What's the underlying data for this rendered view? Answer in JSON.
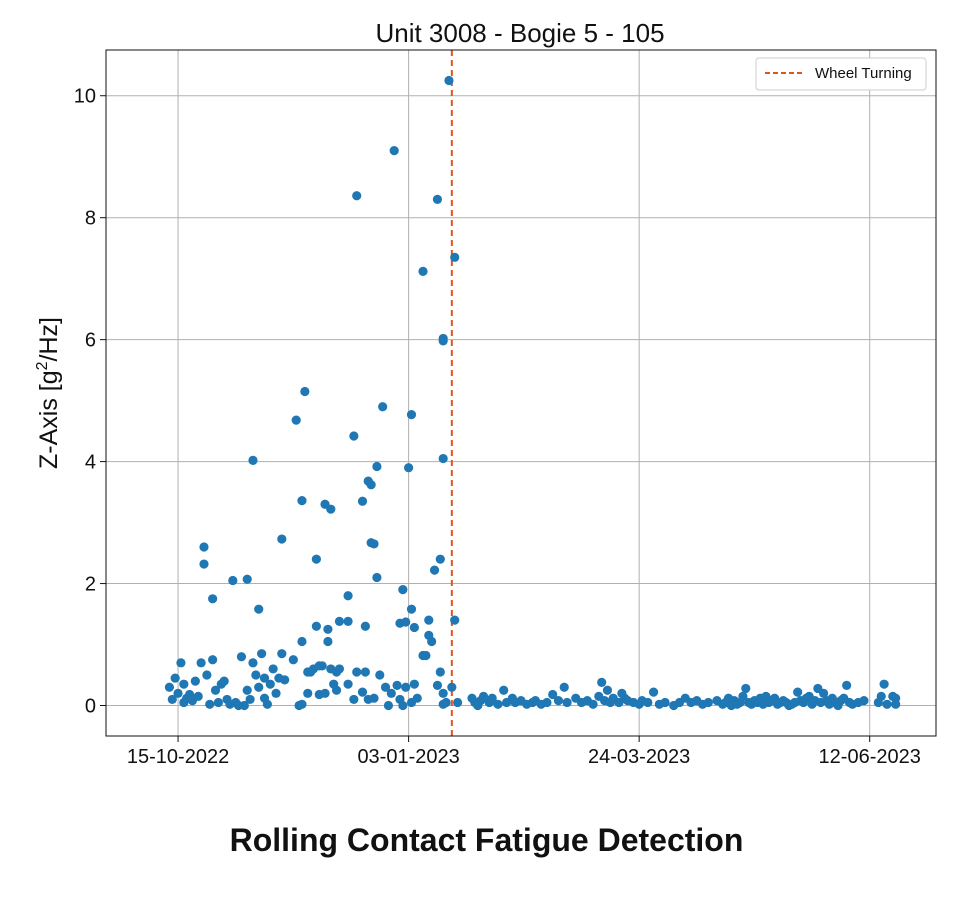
{
  "caption": "Rolling Contact Fatigue Detection",
  "chart_data": {
    "type": "scatter",
    "title": "Unit 3008 - Bogie 5 - 105",
    "xlabel": "",
    "ylabel_main": "Z-Axis [g",
    "ylabel_sup": "2",
    "ylabel_tail": "/Hz]",
    "x_ticks": [
      "2022-10-15",
      "2023-01-03",
      "2023-03-24",
      "2023-06-12"
    ],
    "x_tick_labels": [
      "15-10-2022",
      "03-01-2023",
      "24-03-2023",
      "12-06-2023"
    ],
    "xlim": [
      "2022-09-20",
      "2023-07-05"
    ],
    "y_ticks": [
      0,
      2,
      4,
      6,
      8,
      10
    ],
    "ylim": [
      -0.5,
      10.75
    ],
    "grid": true,
    "legend": {
      "placement": "top-right",
      "entries": [
        {
          "label": "Wheel Turning",
          "style": "dashed",
          "color": "#e2531e"
        }
      ]
    },
    "vline": {
      "x": "2023-01-18",
      "label": "Wheel Turning",
      "color": "#e2531e"
    },
    "point_color": "#1f77b4",
    "points": [
      [
        "2022-10-12",
        0.3
      ],
      [
        "2022-10-13",
        0.1
      ],
      [
        "2022-10-14",
        0.45
      ],
      [
        "2022-10-15",
        0.2
      ],
      [
        "2022-10-16",
        0.7
      ],
      [
        "2022-10-17",
        0.05
      ],
      [
        "2022-10-17",
        0.35
      ],
      [
        "2022-10-18",
        0.12
      ],
      [
        "2022-10-19",
        0.18
      ],
      [
        "2022-10-20",
        0.08
      ],
      [
        "2022-10-21",
        0.4
      ],
      [
        "2022-10-22",
        0.15
      ],
      [
        "2022-10-23",
        0.7
      ],
      [
        "2022-10-24",
        2.6
      ],
      [
        "2022-10-24",
        2.32
      ],
      [
        "2022-10-25",
        0.5
      ],
      [
        "2022-10-26",
        0.02
      ],
      [
        "2022-10-27",
        0.75
      ],
      [
        "2022-10-27",
        1.75
      ],
      [
        "2022-10-28",
        0.25
      ],
      [
        "2022-10-29",
        0.05
      ],
      [
        "2022-10-30",
        0.35
      ],
      [
        "2022-10-31",
        0.4
      ],
      [
        "2022-11-01",
        0.1
      ],
      [
        "2022-11-02",
        0.02
      ],
      [
        "2022-11-03",
        2.05
      ],
      [
        "2022-11-04",
        0.05
      ],
      [
        "2022-11-05",
        0.0
      ],
      [
        "2022-11-06",
        0.8
      ],
      [
        "2022-11-07",
        0.0
      ],
      [
        "2022-11-08",
        0.25
      ],
      [
        "2022-11-08",
        2.07
      ],
      [
        "2022-11-09",
        0.1
      ],
      [
        "2022-11-10",
        0.7
      ],
      [
        "2022-11-10",
        4.02
      ],
      [
        "2022-11-11",
        0.5
      ],
      [
        "2022-11-12",
        0.3
      ],
      [
        "2022-11-12",
        1.58
      ],
      [
        "2022-11-13",
        0.85
      ],
      [
        "2022-11-14",
        0.12
      ],
      [
        "2022-11-14",
        0.45
      ],
      [
        "2022-11-15",
        0.02
      ],
      [
        "2022-11-16",
        0.35
      ],
      [
        "2022-11-17",
        0.6
      ],
      [
        "2022-11-18",
        0.2
      ],
      [
        "2022-11-19",
        0.45
      ],
      [
        "2022-11-20",
        2.73
      ],
      [
        "2022-11-20",
        0.85
      ],
      [
        "2022-11-21",
        0.42
      ],
      [
        "2022-11-24",
        0.75
      ],
      [
        "2022-11-25",
        4.68
      ],
      [
        "2022-11-26",
        0.0
      ],
      [
        "2022-11-27",
        0.02
      ],
      [
        "2022-11-27",
        1.05
      ],
      [
        "2022-11-27",
        3.36
      ],
      [
        "2022-11-28",
        5.15
      ],
      [
        "2022-11-29",
        0.55
      ],
      [
        "2022-11-29",
        0.2
      ],
      [
        "2022-11-30",
        0.55
      ],
      [
        "2022-12-01",
        0.6
      ],
      [
        "2022-12-02",
        2.4
      ],
      [
        "2022-12-02",
        1.3
      ],
      [
        "2022-12-03",
        0.65
      ],
      [
        "2022-12-03",
        0.18
      ],
      [
        "2022-12-04",
        0.65
      ],
      [
        "2022-12-05",
        3.3
      ],
      [
        "2022-12-05",
        0.2
      ],
      [
        "2022-12-06",
        1.25
      ],
      [
        "2022-12-06",
        1.05
      ],
      [
        "2022-12-07",
        3.22
      ],
      [
        "2022-12-07",
        0.6
      ],
      [
        "2022-12-08",
        0.35
      ],
      [
        "2022-12-09",
        0.25
      ],
      [
        "2022-12-09",
        0.55
      ],
      [
        "2022-12-10",
        1.38
      ],
      [
        "2022-12-10",
        0.6
      ],
      [
        "2022-12-13",
        0.35
      ],
      [
        "2022-12-13",
        1.8
      ],
      [
        "2022-12-13",
        1.38
      ],
      [
        "2022-12-15",
        4.42
      ],
      [
        "2022-12-15",
        0.1
      ],
      [
        "2022-12-16",
        8.36
      ],
      [
        "2022-12-16",
        0.55
      ],
      [
        "2022-12-18",
        3.35
      ],
      [
        "2022-12-18",
        0.22
      ],
      [
        "2022-12-19",
        0.55
      ],
      [
        "2022-12-19",
        1.3
      ],
      [
        "2022-12-20",
        3.68
      ],
      [
        "2022-12-20",
        0.1
      ],
      [
        "2022-12-21",
        3.62
      ],
      [
        "2022-12-21",
        2.67
      ],
      [
        "2022-12-22",
        2.65
      ],
      [
        "2022-12-22",
        0.12
      ],
      [
        "2022-12-23",
        2.1
      ],
      [
        "2022-12-23",
        3.92
      ],
      [
        "2022-12-24",
        0.5
      ],
      [
        "2022-12-25",
        4.9
      ],
      [
        "2022-12-26",
        0.3
      ],
      [
        "2022-12-27",
        0.0
      ],
      [
        "2022-12-28",
        0.2
      ],
      [
        "2022-12-29",
        9.1
      ],
      [
        "2022-12-30",
        0.33
      ],
      [
        "2022-12-31",
        1.35
      ],
      [
        "2022-12-31",
        0.1
      ],
      [
        "2023-01-01",
        1.9
      ],
      [
        "2023-01-01",
        0.0
      ],
      [
        "2023-01-02",
        1.37
      ],
      [
        "2023-01-02",
        0.3
      ],
      [
        "2023-01-03",
        3.9
      ],
      [
        "2023-01-04",
        0.05
      ],
      [
        "2023-01-04",
        1.58
      ],
      [
        "2023-01-04",
        4.77
      ],
      [
        "2023-01-05",
        0.35
      ],
      [
        "2023-01-05",
        1.28
      ],
      [
        "2023-01-06",
        0.12
      ],
      [
        "2023-01-08",
        0.82
      ],
      [
        "2023-01-08",
        7.12
      ],
      [
        "2023-01-09",
        0.82
      ],
      [
        "2023-01-10",
        1.15
      ],
      [
        "2023-01-10",
        1.4
      ],
      [
        "2023-01-11",
        1.05
      ],
      [
        "2023-01-12",
        2.22
      ],
      [
        "2023-01-13",
        0.33
      ],
      [
        "2023-01-13",
        8.3
      ],
      [
        "2023-01-14",
        2.4
      ],
      [
        "2023-01-14",
        0.55
      ],
      [
        "2023-01-15",
        0.2
      ],
      [
        "2023-01-15",
        0.02
      ],
      [
        "2023-01-15",
        6.02
      ],
      [
        "2023-01-15",
        5.98
      ],
      [
        "2023-01-15",
        4.05
      ],
      [
        "2023-01-16",
        0.05
      ],
      [
        "2023-01-17",
        10.25
      ],
      [
        "2023-01-18",
        0.3
      ],
      [
        "2023-01-19",
        7.35
      ],
      [
        "2023-01-19",
        1.4
      ],
      [
        "2023-01-20",
        0.05
      ],
      [
        "2023-01-25",
        0.12
      ],
      [
        "2023-01-26",
        0.05
      ],
      [
        "2023-01-27",
        0.0
      ],
      [
        "2023-01-28",
        0.08
      ],
      [
        "2023-01-29",
        0.15
      ],
      [
        "2023-01-31",
        0.05
      ],
      [
        "2023-02-01",
        0.12
      ],
      [
        "2023-02-03",
        0.02
      ],
      [
        "2023-02-05",
        0.25
      ],
      [
        "2023-02-06",
        0.05
      ],
      [
        "2023-02-08",
        0.12
      ],
      [
        "2023-02-09",
        0.05
      ],
      [
        "2023-02-11",
        0.08
      ],
      [
        "2023-02-13",
        0.02
      ],
      [
        "2023-02-15",
        0.05
      ],
      [
        "2023-02-16",
        0.08
      ],
      [
        "2023-02-18",
        0.02
      ],
      [
        "2023-02-20",
        0.05
      ],
      [
        "2023-02-22",
        0.18
      ],
      [
        "2023-02-24",
        0.08
      ],
      [
        "2023-02-26",
        0.3
      ],
      [
        "2023-02-27",
        0.05
      ],
      [
        "2023-03-02",
        0.12
      ],
      [
        "2023-03-04",
        0.05
      ],
      [
        "2023-03-06",
        0.08
      ],
      [
        "2023-03-08",
        0.02
      ],
      [
        "2023-03-10",
        0.15
      ],
      [
        "2023-03-11",
        0.38
      ],
      [
        "2023-03-12",
        0.08
      ],
      [
        "2023-03-13",
        0.25
      ],
      [
        "2023-03-14",
        0.05
      ],
      [
        "2023-03-15",
        0.12
      ],
      [
        "2023-03-17",
        0.05
      ],
      [
        "2023-03-18",
        0.2
      ],
      [
        "2023-03-19",
        0.12
      ],
      [
        "2023-03-20",
        0.08
      ],
      [
        "2023-03-22",
        0.05
      ],
      [
        "2023-03-24",
        0.02
      ],
      [
        "2023-03-25",
        0.08
      ],
      [
        "2023-03-27",
        0.05
      ],
      [
        "2023-03-29",
        0.22
      ],
      [
        "2023-03-31",
        0.02
      ],
      [
        "2023-04-02",
        0.05
      ],
      [
        "2023-04-05",
        0.0
      ],
      [
        "2023-04-07",
        0.05
      ],
      [
        "2023-04-09",
        0.12
      ],
      [
        "2023-04-11",
        0.05
      ],
      [
        "2023-04-13",
        0.08
      ],
      [
        "2023-04-15",
        0.02
      ],
      [
        "2023-04-17",
        0.05
      ],
      [
        "2023-04-20",
        0.08
      ],
      [
        "2023-04-22",
        0.02
      ],
      [
        "2023-04-23",
        0.05
      ],
      [
        "2023-04-24",
        0.12
      ],
      [
        "2023-04-25",
        0.0
      ],
      [
        "2023-04-26",
        0.08
      ],
      [
        "2023-04-27",
        0.02
      ],
      [
        "2023-04-28",
        0.05
      ],
      [
        "2023-04-29",
        0.15
      ],
      [
        "2023-04-30",
        0.28
      ],
      [
        "2023-05-01",
        0.05
      ],
      [
        "2023-05-02",
        0.02
      ],
      [
        "2023-05-03",
        0.08
      ],
      [
        "2023-05-04",
        0.05
      ],
      [
        "2023-05-05",
        0.12
      ],
      [
        "2023-05-06",
        0.02
      ],
      [
        "2023-05-07",
        0.15
      ],
      [
        "2023-05-08",
        0.05
      ],
      [
        "2023-05-09",
        0.08
      ],
      [
        "2023-05-10",
        0.12
      ],
      [
        "2023-05-11",
        0.02
      ],
      [
        "2023-05-12",
        0.05
      ],
      [
        "2023-05-13",
        0.08
      ],
      [
        "2023-05-14",
        0.05
      ],
      [
        "2023-05-15",
        0.0
      ],
      [
        "2023-05-16",
        0.02
      ],
      [
        "2023-05-17",
        0.05
      ],
      [
        "2023-05-18",
        0.22
      ],
      [
        "2023-05-19",
        0.08
      ],
      [
        "2023-05-20",
        0.05
      ],
      [
        "2023-05-21",
        0.12
      ],
      [
        "2023-05-22",
        0.15
      ],
      [
        "2023-05-23",
        0.02
      ],
      [
        "2023-05-24",
        0.08
      ],
      [
        "2023-05-25",
        0.28
      ],
      [
        "2023-05-26",
        0.05
      ],
      [
        "2023-05-27",
        0.2
      ],
      [
        "2023-05-28",
        0.08
      ],
      [
        "2023-05-29",
        0.02
      ],
      [
        "2023-05-30",
        0.12
      ],
      [
        "2023-05-31",
        0.05
      ],
      [
        "2023-06-01",
        0.0
      ],
      [
        "2023-06-02",
        0.08
      ],
      [
        "2023-06-03",
        0.12
      ],
      [
        "2023-06-04",
        0.33
      ],
      [
        "2023-06-05",
        0.05
      ],
      [
        "2023-06-06",
        0.02
      ],
      [
        "2023-06-08",
        0.05
      ],
      [
        "2023-06-10",
        0.08
      ],
      [
        "2023-06-15",
        0.05
      ],
      [
        "2023-06-16",
        0.15
      ],
      [
        "2023-06-17",
        0.35
      ],
      [
        "2023-06-18",
        0.02
      ],
      [
        "2023-06-20",
        0.15
      ],
      [
        "2023-06-21",
        0.12
      ],
      [
        "2023-06-21",
        0.02
      ]
    ]
  }
}
